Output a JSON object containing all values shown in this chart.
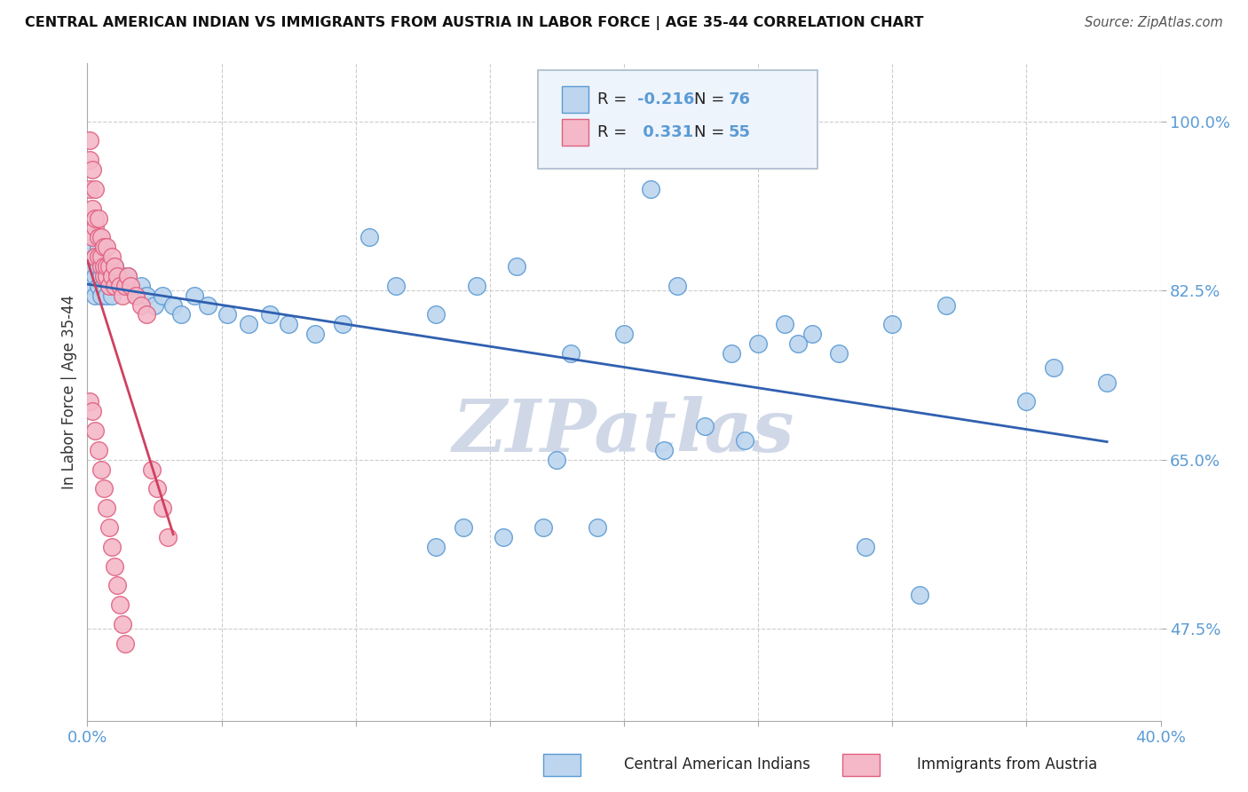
{
  "title": "CENTRAL AMERICAN INDIAN VS IMMIGRANTS FROM AUSTRIA IN LABOR FORCE | AGE 35-44 CORRELATION CHART",
  "source": "Source: ZipAtlas.com",
  "ylabel": "In Labor Force | Age 35-44",
  "xlim": [
    0.0,
    0.4
  ],
  "ylim": [
    0.38,
    1.06
  ],
  "ytick_vals": [
    0.475,
    0.65,
    0.825,
    1.0
  ],
  "ytick_labels": [
    "47.5%",
    "65.0%",
    "82.5%",
    "100.0%"
  ],
  "xtick_vals": [
    0.0,
    0.05,
    0.1,
    0.15,
    0.2,
    0.25,
    0.3,
    0.35,
    0.4
  ],
  "blue_R": -0.216,
  "blue_N": 76,
  "pink_R": 0.331,
  "pink_N": 55,
  "blue_fill": "#bdd5ee",
  "blue_edge": "#5b9bd5",
  "pink_fill": "#f4b8c8",
  "pink_edge": "#e06080",
  "blue_line": "#3060b0",
  "pink_line": "#d04060",
  "watermark_color": "#d0d8e8",
  "blue_x": [
    0.001,
    0.001,
    0.002,
    0.002,
    0.002,
    0.003,
    0.003,
    0.003,
    0.004,
    0.004,
    0.004,
    0.005,
    0.005,
    0.005,
    0.006,
    0.006,
    0.007,
    0.007,
    0.008,
    0.008,
    0.009,
    0.009,
    0.01,
    0.01,
    0.011,
    0.012,
    0.013,
    0.014,
    0.015,
    0.016,
    0.018,
    0.02,
    0.022,
    0.025,
    0.028,
    0.032,
    0.035,
    0.04,
    0.045,
    0.052,
    0.06,
    0.068,
    0.075,
    0.085,
    0.095,
    0.105,
    0.115,
    0.13,
    0.145,
    0.16,
    0.18,
    0.2,
    0.22,
    0.24,
    0.26,
    0.28,
    0.3,
    0.32,
    0.35,
    0.36,
    0.21,
    0.25,
    0.38,
    0.19,
    0.13,
    0.29,
    0.17,
    0.14,
    0.155,
    0.23,
    0.27,
    0.31,
    0.245,
    0.215,
    0.175,
    0.265
  ],
  "blue_y": [
    0.84,
    0.86,
    0.83,
    0.87,
    0.85,
    0.82,
    0.86,
    0.84,
    0.83,
    0.87,
    0.85,
    0.82,
    0.84,
    0.86,
    0.83,
    0.85,
    0.82,
    0.84,
    0.83,
    0.85,
    0.82,
    0.84,
    0.83,
    0.85,
    0.84,
    0.83,
    0.84,
    0.83,
    0.84,
    0.83,
    0.82,
    0.83,
    0.82,
    0.81,
    0.82,
    0.81,
    0.8,
    0.82,
    0.81,
    0.8,
    0.79,
    0.8,
    0.79,
    0.78,
    0.79,
    0.88,
    0.83,
    0.8,
    0.83,
    0.85,
    0.76,
    0.78,
    0.83,
    0.76,
    0.79,
    0.76,
    0.79,
    0.81,
    0.71,
    0.745,
    0.93,
    0.77,
    0.73,
    0.58,
    0.56,
    0.56,
    0.58,
    0.58,
    0.57,
    0.685,
    0.78,
    0.51,
    0.67,
    0.66,
    0.65,
    0.77
  ],
  "pink_x": [
    0.001,
    0.001,
    0.001,
    0.002,
    0.002,
    0.002,
    0.003,
    0.003,
    0.003,
    0.003,
    0.004,
    0.004,
    0.004,
    0.005,
    0.005,
    0.005,
    0.006,
    0.006,
    0.006,
    0.007,
    0.007,
    0.007,
    0.008,
    0.008,
    0.009,
    0.009,
    0.01,
    0.01,
    0.011,
    0.012,
    0.013,
    0.014,
    0.015,
    0.016,
    0.018,
    0.02,
    0.022,
    0.024,
    0.026,
    0.028,
    0.03,
    0.001,
    0.002,
    0.003,
    0.004,
    0.005,
    0.006,
    0.007,
    0.008,
    0.009,
    0.01,
    0.011,
    0.012,
    0.013,
    0.014
  ],
  "pink_y": [
    0.98,
    0.96,
    0.93,
    0.91,
    0.95,
    0.88,
    0.89,
    0.93,
    0.86,
    0.9,
    0.88,
    0.86,
    0.9,
    0.85,
    0.88,
    0.86,
    0.84,
    0.87,
    0.85,
    0.84,
    0.87,
    0.85,
    0.83,
    0.85,
    0.84,
    0.86,
    0.83,
    0.85,
    0.84,
    0.83,
    0.82,
    0.83,
    0.84,
    0.83,
    0.82,
    0.81,
    0.8,
    0.64,
    0.62,
    0.6,
    0.57,
    0.71,
    0.7,
    0.68,
    0.66,
    0.64,
    0.62,
    0.6,
    0.58,
    0.56,
    0.54,
    0.52,
    0.5,
    0.48,
    0.46
  ]
}
